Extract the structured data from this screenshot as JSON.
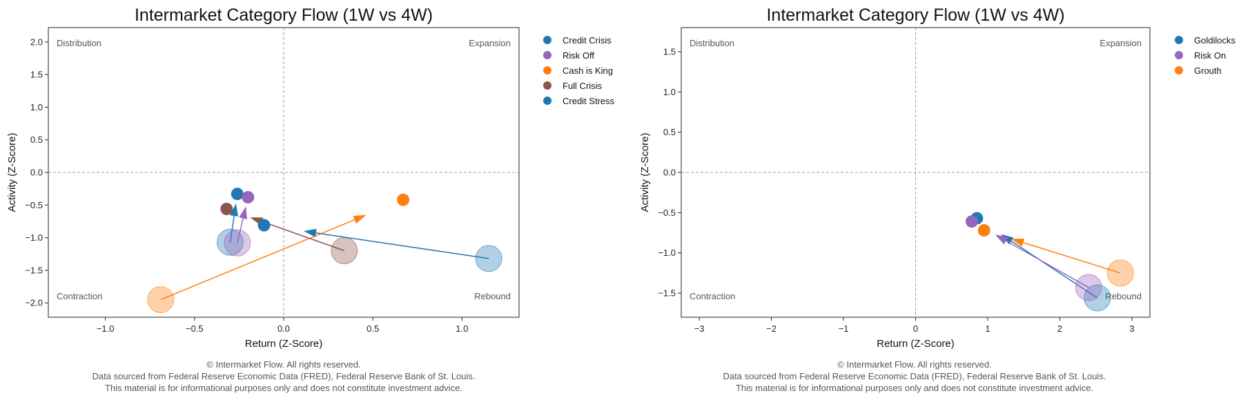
{
  "chart_data": [
    {
      "type": "scatter",
      "title": "Intermarket Category Flow (1W vs 4W)",
      "xlabel": "Return (Z-Score)",
      "ylabel": "Activity (Z-Score)",
      "xlim": [
        -1.32,
        1.32
      ],
      "ylim": [
        -2.22,
        2.22
      ],
      "xticks": [
        -1.0,
        -0.5,
        0.0,
        0.5,
        1.0
      ],
      "xtick_labels": [
        "−1.0",
        "−0.5",
        "0.0",
        "0.5",
        "1.0"
      ],
      "yticks": [
        2.0,
        1.5,
        1.0,
        0.5,
        0.0,
        -0.5,
        -1.0,
        -1.5,
        -2.0
      ],
      "ytick_labels": [
        "2.0",
        "1.5",
        "1.0",
        "0.5",
        "0.0",
        "−0.5",
        "−1.0",
        "−1.5",
        "−2.0"
      ],
      "quadrants": {
        "top_left": "Distribution",
        "top_right": "Expansion",
        "bottom_left": "Contraction",
        "bottom_right": "Rebound"
      },
      "legend_position": "outside-right",
      "grid": false,
      "series": [
        {
          "name": "Credit Crisis",
          "color": "#1f77b4",
          "from": [
            -0.3,
            -1.07
          ],
          "to": [
            -0.26,
            -0.33
          ]
        },
        {
          "name": "Risk Off",
          "color": "#9467bd",
          "from": [
            -0.26,
            -1.08
          ],
          "to": [
            -0.2,
            -0.38
          ]
        },
        {
          "name": "Cash is King",
          "color": "#ff7f0e",
          "from": [
            -0.69,
            -1.95
          ],
          "to": [
            0.67,
            -0.42
          ]
        },
        {
          "name": "Full Crisis",
          "color": "#8c564b",
          "from": [
            0.34,
            -1.2
          ],
          "to": [
            -0.32,
            -0.56
          ]
        },
        {
          "name": "Credit Stress",
          "color": "#1f77b4",
          "from": [
            1.15,
            -1.32
          ],
          "to": [
            -0.11,
            -0.81
          ]
        }
      ]
    },
    {
      "type": "scatter",
      "title": "Intermarket Category Flow (1W vs 4W)",
      "xlabel": "Return (Z-Score)",
      "ylabel": "Activity (Z-Score)",
      "xlim": [
        -3.25,
        3.25
      ],
      "ylim": [
        -1.8,
        1.8
      ],
      "xticks": [
        -3,
        -2,
        -1,
        0,
        1,
        2,
        3
      ],
      "xtick_labels": [
        "−3",
        "−2",
        "−1",
        "0",
        "1",
        "2",
        "3"
      ],
      "yticks": [
        1.5,
        1.0,
        0.5,
        0.0,
        -0.5,
        -1.0,
        -1.5
      ],
      "ytick_labels": [
        "1.5",
        "1.0",
        "0.5",
        "0.0",
        "−0.5",
        "−1.0",
        "−1.5"
      ],
      "quadrants": {
        "top_left": "Distribution",
        "top_right": "Expansion",
        "bottom_left": "Contraction",
        "bottom_right": "Rebound"
      },
      "legend_position": "outside-right",
      "grid": false,
      "series": [
        {
          "name": "Goldilocks",
          "color": "#1f77b4",
          "from": [
            2.52,
            -1.56
          ],
          "to": [
            0.85,
            -0.57
          ]
        },
        {
          "name": "Risk On",
          "color": "#9467bd",
          "from": [
            2.4,
            -1.43
          ],
          "to": [
            0.78,
            -0.61
          ]
        },
        {
          "name": "Grouth",
          "color": "#ff7f0e",
          "from": [
            2.84,
            -1.25
          ],
          "to": [
            0.95,
            -0.72
          ]
        }
      ]
    }
  ],
  "footer": [
    "© Intermarket Flow. All rights reserved.",
    "Data sourced from Federal Reserve Economic Data (FRED), Federal Reserve Bank of St. Louis.",
    "This material is for informational purposes only and does not constitute investment advice."
  ]
}
